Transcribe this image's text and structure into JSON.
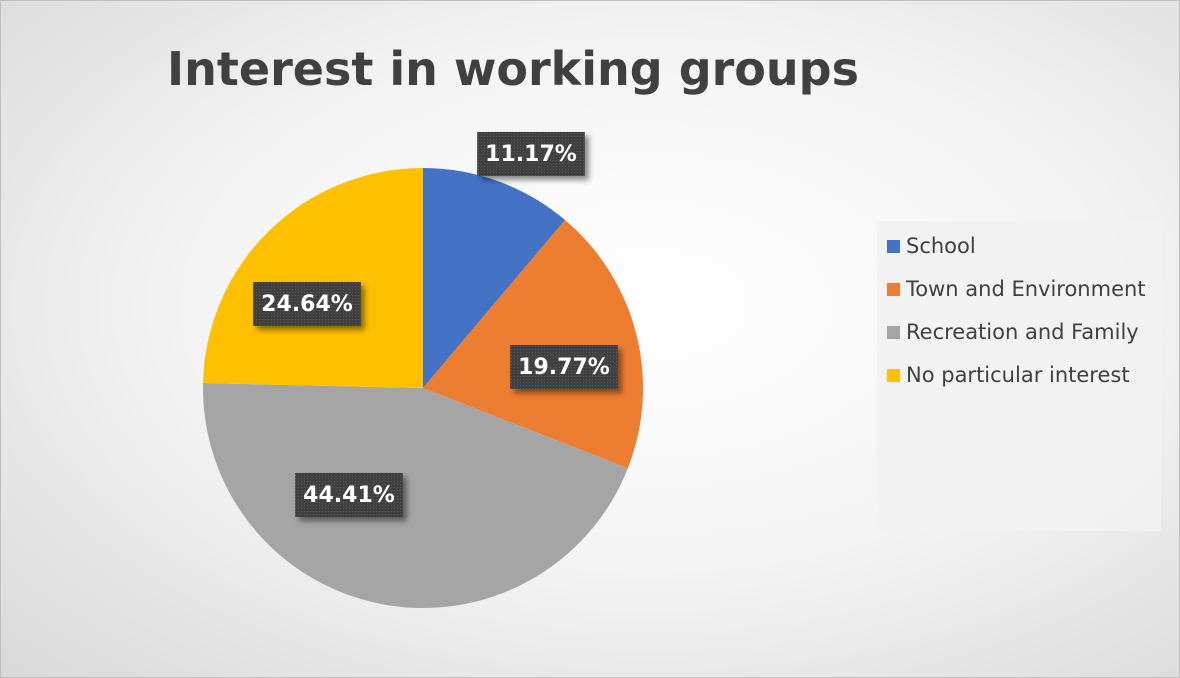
{
  "chart_data": {
    "type": "pie",
    "title": "Interest in working groups",
    "categories": [
      "School",
      "Town and Environment",
      "Recreation and Family",
      "No particular interest"
    ],
    "values": [
      11.17,
      19.77,
      44.41,
      24.64
    ],
    "value_labels": [
      "11.17%",
      "19.77%",
      "44.41%",
      "24.64%"
    ],
    "colors": [
      "#4472c4",
      "#ed7d31",
      "#a5a5a5",
      "#ffc000"
    ],
    "legend": "right"
  }
}
